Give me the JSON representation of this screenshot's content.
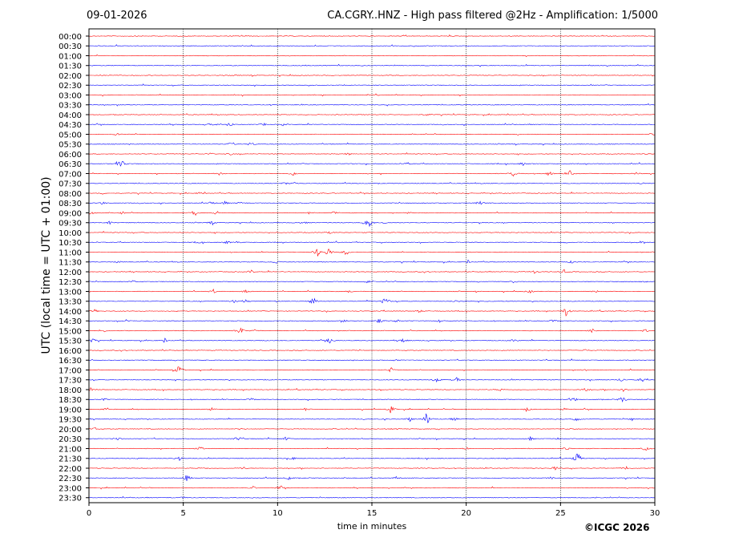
{
  "header": {
    "date": "09-01-2026",
    "title": "CA.CGRY..HNZ - High pass filtered @2Hz - Amplification: 1/5000"
  },
  "chart_data": {
    "type": "line",
    "title": "CA.CGRY..HNZ - High pass filtered @2Hz - Amplification: 1/5000",
    "xlabel": "time in minutes",
    "ylabel": "UTC (local time = UTC + 01:00)",
    "xlim": [
      0,
      30
    ],
    "x_ticks": [
      "0",
      "5",
      "10",
      "15",
      "20",
      "25",
      "30"
    ],
    "vertical_gridlines_at_minutes": [
      5,
      10,
      15,
      20,
      25
    ],
    "y_ticks": [
      "00:00",
      "00:30",
      "01:00",
      "01:30",
      "02:00",
      "02:30",
      "03:00",
      "03:30",
      "04:00",
      "04:30",
      "05:00",
      "05:30",
      "06:00",
      "06:30",
      "07:00",
      "07:30",
      "08:00",
      "08:30",
      "09:00",
      "09:30",
      "10:00",
      "10:30",
      "11:00",
      "11:30",
      "12:00",
      "12:30",
      "13:00",
      "13:30",
      "14:00",
      "14:30",
      "15:00",
      "15:30",
      "16:00",
      "16:30",
      "17:00",
      "17:30",
      "18:00",
      "18:30",
      "19:00",
      "19:30",
      "20:00",
      "20:30",
      "21:00",
      "21:30",
      "22:00",
      "22:30",
      "23:00",
      "23:30"
    ],
    "trace_colors": [
      "#ff0000",
      "#0000ff"
    ],
    "events": [
      [],
      [],
      [],
      [],
      [],
      [],
      [],
      [],
      [
        [
          17.9,
          0.3
        ]
      ],
      [
        [
          6.5,
          0.6
        ],
        [
          7.5,
          0.5
        ],
        [
          9.3,
          0.3
        ],
        [
          10.3,
          0.3
        ]
      ],
      [
        [
          1.5,
          0.4
        ],
        [
          29.8,
          0.3
        ]
      ],
      [
        [
          7.5,
          0.4
        ],
        [
          8.6,
          0.6
        ]
      ],
      [
        [
          6.5,
          0.3
        ],
        [
          7.5,
          0.3
        ],
        [
          13.7,
          0.3
        ],
        [
          29.5,
          0.2
        ]
      ],
      [
        [
          1.5,
          0.4
        ],
        [
          1.7,
          1.2
        ],
        [
          16.9,
          0.3
        ],
        [
          23,
          0.4
        ]
      ],
      [
        [
          6.9,
          0.4
        ],
        [
          10.8,
          0.6
        ],
        [
          22.5,
          0.7
        ],
        [
          24.4,
          0.7
        ],
        [
          25.5,
          0.7
        ],
        [
          29,
          0.3
        ]
      ],
      [
        [
          10.4,
          0.3
        ],
        [
          10.9,
          0.4
        ],
        [
          29.3,
          0.3
        ]
      ],
      [
        [
          0.7,
          0.3
        ],
        [
          5.9,
          0.4
        ]
      ],
      [
        [
          0.7,
          0.4
        ],
        [
          6.5,
          0.5
        ],
        [
          7.2,
          0.4
        ],
        [
          8,
          0.3
        ],
        [
          20.7,
          0.6
        ]
      ],
      [
        [
          0.1,
          0.5
        ],
        [
          1.7,
          0.4
        ],
        [
          5.6,
          0.9
        ],
        [
          6.8,
          0.5
        ],
        [
          11.7,
          0.3
        ],
        [
          13,
          0.5
        ],
        [
          17,
          0.3
        ]
      ],
      [
        [
          1.1,
          0.6
        ],
        [
          6.5,
          0.5
        ],
        [
          11.4,
          0.3
        ],
        [
          14.8,
          2.5
        ],
        [
          15.7,
          0.3
        ],
        [
          20.7,
          0.3
        ]
      ],
      [
        [
          12.8,
          0.3
        ]
      ],
      [
        [
          5.8,
          0.3
        ],
        [
          7.3,
          0.4
        ],
        [
          7.9,
          0.3
        ],
        [
          25.2,
          0.3
        ],
        [
          29.2,
          0.3
        ]
      ],
      [
        [
          12.1,
          1.3
        ],
        [
          12.7,
          1.3
        ],
        [
          13.6,
          0.6
        ]
      ],
      [
        [
          1.5,
          0.3
        ],
        [
          9.9,
          0.4
        ],
        [
          20.1,
          0.3
        ],
        [
          25.6,
          0.4
        ]
      ],
      [
        [
          8.6,
          0.5
        ],
        [
          23.6,
          0.4
        ],
        [
          25.2,
          0.5
        ]
      ],
      [
        [
          2.3,
          0.3
        ],
        [
          14.8,
          0.4
        ],
        [
          22.5,
          0.3
        ],
        [
          29.5,
          0.3
        ]
      ],
      [
        [
          6.6,
          0.6
        ],
        [
          8.3,
          0.4
        ],
        [
          13.8,
          0.3
        ],
        [
          23.4,
          0.4
        ],
        [
          26.9,
          0.3
        ]
      ],
      [
        [
          7.7,
          0.4
        ],
        [
          8.3,
          0.6
        ],
        [
          10,
          0.3
        ],
        [
          11.9,
          1
        ],
        [
          15.7,
          1.3
        ],
        [
          19.5,
          0.3
        ]
      ],
      [
        [
          0.3,
          0.4
        ],
        [
          17.5,
          0.4
        ],
        [
          25.3,
          1.5
        ]
      ],
      [
        [
          2,
          0.4
        ],
        [
          13.6,
          0.4
        ],
        [
          15.4,
          0.7
        ],
        [
          16.3,
          0.4
        ],
        [
          18.6,
          0.3
        ],
        [
          24.6,
          0.3
        ]
      ],
      [
        [
          0.8,
          0.3
        ],
        [
          8,
          1.3
        ],
        [
          8.8,
          0.4
        ],
        [
          26.7,
          0.6
        ],
        [
          29.5,
          0.5
        ]
      ],
      [
        [
          0.2,
          0.6
        ],
        [
          4,
          0.5
        ],
        [
          12.8,
          0.9
        ],
        [
          16.7,
          0.8
        ],
        [
          22.5,
          0.3
        ]
      ],
      [
        [
          26.3,
          0.3
        ]
      ],
      [
        [
          16.2,
          0.3
        ]
      ],
      [
        [
          4.8,
          1.5
        ],
        [
          16,
          0.7
        ],
        [
          26.3,
          0.3
        ]
      ],
      [
        [
          18.4,
          0.6
        ],
        [
          19.5,
          0.7
        ],
        [
          28.2,
          0.5
        ],
        [
          29.3,
          0.6
        ]
      ],
      [
        [
          0.1,
          0.6
        ],
        [
          21.8,
          0.4
        ],
        [
          26.3,
          0.6
        ],
        [
          28.3,
          0.5
        ]
      ],
      [
        [
          0.8,
          0.4
        ],
        [
          8.6,
          0.3
        ],
        [
          25.7,
          0.7
        ],
        [
          28.3,
          0.9
        ]
      ],
      [
        [
          0.8,
          0.3
        ],
        [
          6.5,
          0.4
        ],
        [
          11.5,
          0.4
        ],
        [
          16,
          1
        ],
        [
          20.9,
          0.3
        ],
        [
          23.2,
          0.6
        ],
        [
          25.2,
          0.4
        ]
      ],
      [
        [
          17,
          0.6
        ],
        [
          17.9,
          1.7
        ],
        [
          19.4,
          0.5
        ],
        [
          25.8,
          0.7
        ],
        [
          28.8,
          0.3
        ]
      ],
      [
        [
          0.3,
          0.4
        ],
        [
          8,
          0.3
        ],
        [
          16.2,
          0.3
        ],
        [
          25.4,
          0.3
        ]
      ],
      [
        [
          1.5,
          0.6
        ],
        [
          7.9,
          0.7
        ],
        [
          10.4,
          0.5
        ],
        [
          23.4,
          0.5
        ],
        [
          24.9,
          0.3
        ]
      ],
      [
        [
          5.9,
          0.6
        ],
        [
          20,
          0.3
        ],
        [
          25.3,
          0.6
        ],
        [
          29.5,
          0.7
        ]
      ],
      [
        [
          4.8,
          0.6
        ],
        [
          10.8,
          0.4
        ],
        [
          25.9,
          1.8
        ]
      ],
      [
        [
          6.2,
          0.3
        ],
        [
          8.2,
          0.4
        ],
        [
          24.7,
          0.7
        ],
        [
          28.5,
          0.4
        ]
      ],
      [
        [
          5.2,
          1
        ],
        [
          10.6,
          0.6
        ],
        [
          16.3,
          0.3
        ],
        [
          24.5,
          0.3
        ]
      ],
      [
        [
          8.7,
          0.4
        ],
        [
          10.1,
          0.6
        ]
      ],
      [
        [
          5,
          0.3
        ]
      ]
    ]
  },
  "footer": {
    "copyright": "©ICGC 2026"
  }
}
